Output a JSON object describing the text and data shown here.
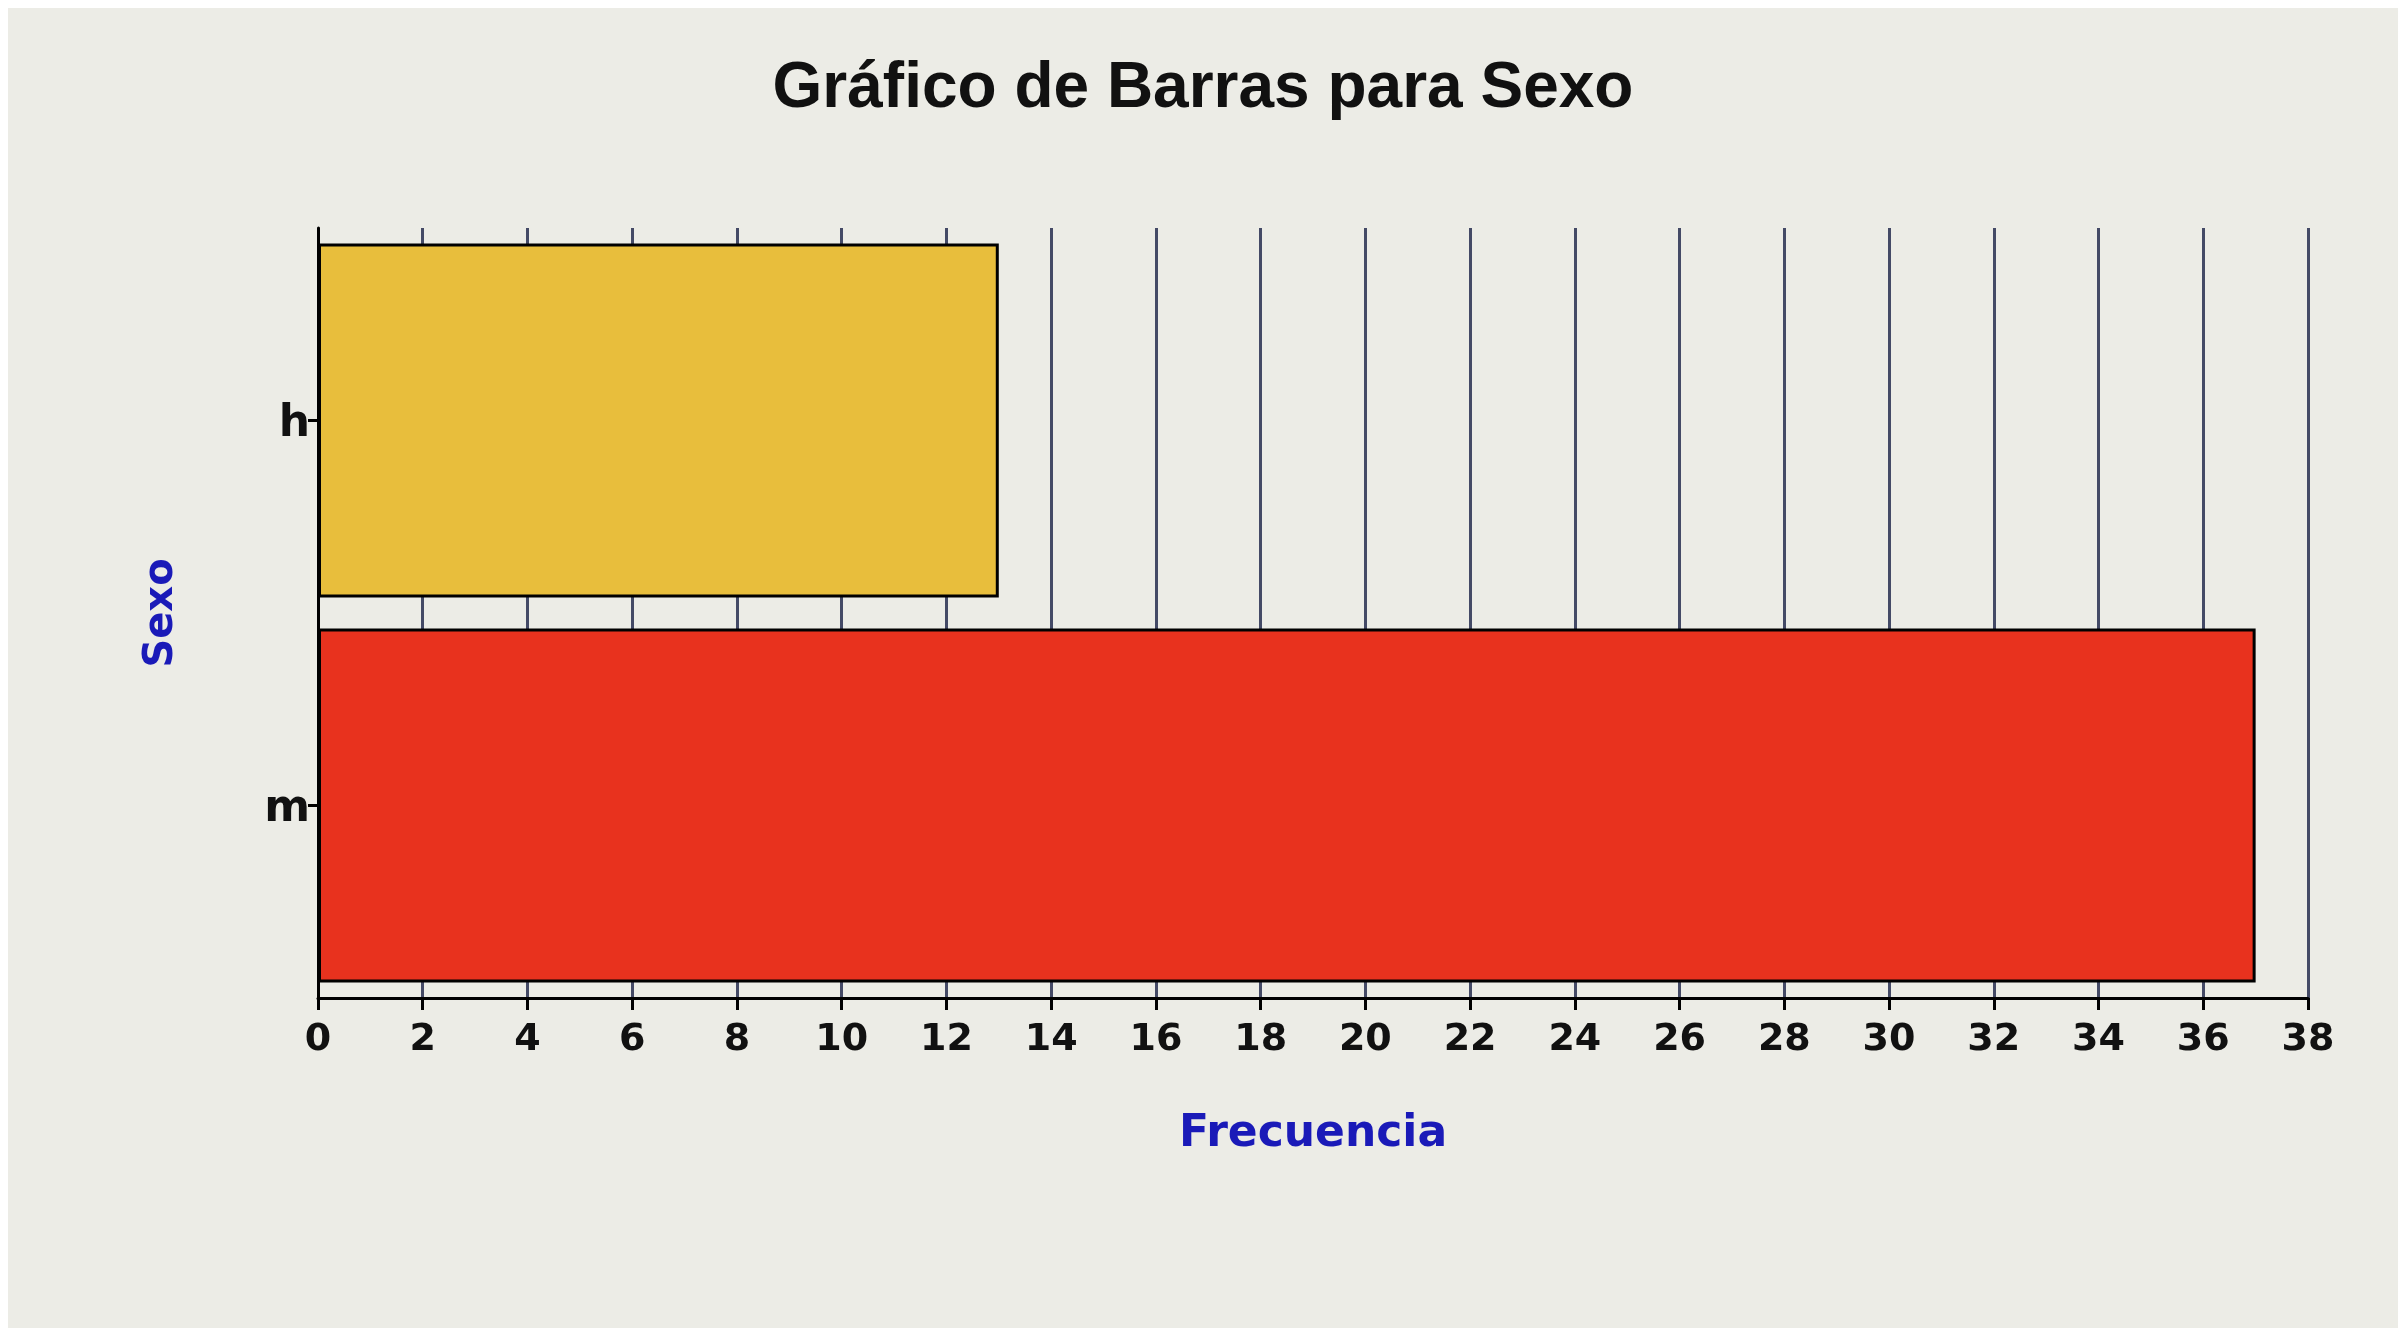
{
  "chart_data": {
    "type": "bar",
    "orientation": "horizontal",
    "title": "Gráfico de Barras para Sexo",
    "xlabel": "Frecuencia",
    "ylabel": "Sexo",
    "categories": [
      "h",
      "m"
    ],
    "values": [
      13,
      37
    ],
    "colors": [
      "#e8be3c",
      "#e8321e"
    ],
    "xlim": [
      0,
      38
    ],
    "xticks": [
      0,
      2,
      4,
      6,
      8,
      10,
      12,
      14,
      16,
      18,
      20,
      22,
      24,
      26,
      28,
      30,
      32,
      34,
      36,
      38
    ],
    "grid": "x"
  }
}
